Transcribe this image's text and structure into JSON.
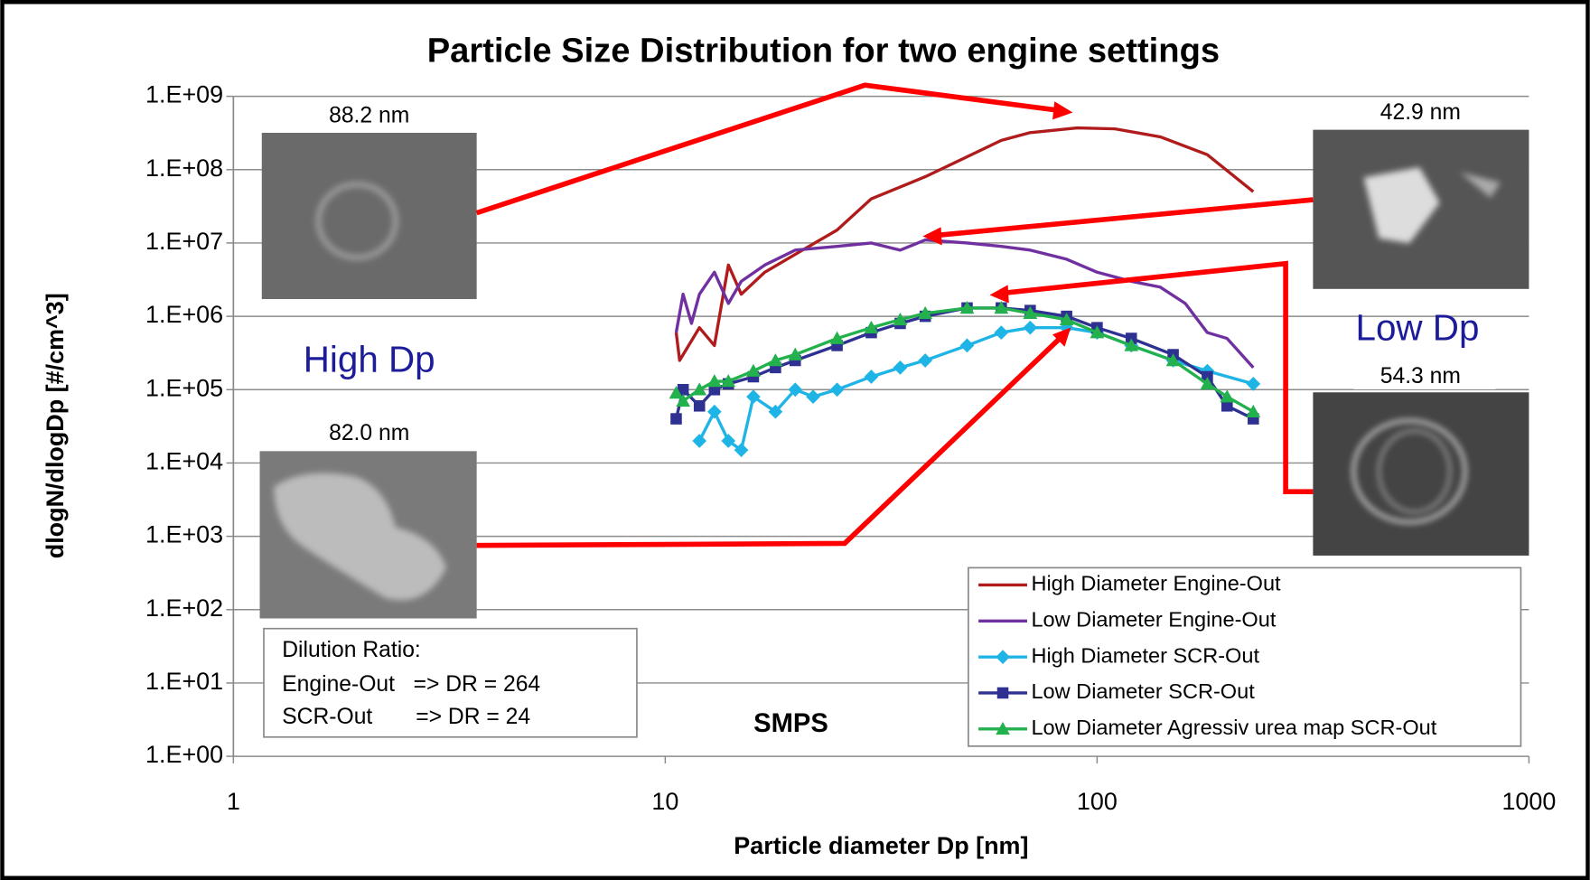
{
  "chart_data": {
    "type": "line",
    "title": "Particle Size Distribution for two engine settings",
    "x_label": "Particle diameter Dp [nm]",
    "y_label": "dlogN/dlogDp   [#/cm^3]",
    "x_log": true,
    "y_log": true,
    "grid": true,
    "legend": "lower right",
    "xlim": [
      1,
      1000
    ],
    "xticks": [
      1,
      10,
      100,
      1000
    ],
    "ylim": [
      1,
      1000000000
    ],
    "yticks": [
      {
        "value": 1,
        "label": "1.E+00"
      },
      {
        "value": 10,
        "label": "1.E+01"
      },
      {
        "value": 100,
        "label": "1.E+02"
      },
      {
        "value": 1000,
        "label": "1.E+03"
      },
      {
        "value": 10000,
        "label": "1.E+04"
      },
      {
        "value": 100000,
        "label": "1.E+05"
      },
      {
        "value": 1000000,
        "label": "1.E+06"
      },
      {
        "value": 10000000,
        "label": "1.E+07"
      },
      {
        "value": 100000000,
        "label": "1.E+08"
      },
      {
        "value": 1000000000,
        "label": "1.E+09"
      }
    ],
    "series": [
      {
        "name": "High Diameter Engine-Out",
        "color": "#b01c1c",
        "marker": "none",
        "x": [
          10.6,
          10.8,
          12,
          13,
          14,
          15,
          17,
          20,
          25,
          30,
          40,
          50,
          60,
          70,
          90,
          110,
          140,
          180,
          230
        ],
        "values": [
          600000,
          250000,
          700000,
          400000,
          5000000,
          2000000,
          4000000,
          7000000,
          15000000,
          40000000,
          80000000,
          150000000,
          250000000,
          320000000,
          370000000,
          360000000,
          280000000,
          160000000,
          50000000
        ]
      },
      {
        "name": "Low Diameter Engine-Out",
        "color": "#7030a0",
        "marker": "none",
        "x": [
          10.6,
          11,
          11.5,
          12,
          13,
          14,
          15,
          17,
          20,
          25,
          30,
          35,
          40,
          50,
          60,
          70,
          85,
          100,
          120,
          140,
          160,
          180,
          200,
          230
        ],
        "values": [
          600000,
          2000000,
          800000,
          2000000,
          4000000,
          1500000,
          3000000,
          5000000,
          8000000,
          9000000,
          10000000,
          8000000,
          11000000,
          10000000,
          9000000,
          8000000,
          6000000,
          4000000,
          3000000,
          2500000,
          1500000,
          600000,
          500000,
          200000
        ]
      },
      {
        "name": "High Diameter SCR-Out",
        "color": "#1fb4e6",
        "marker": "diamond",
        "x": [
          12,
          13,
          14,
          15,
          16,
          18,
          20,
          22,
          25,
          30,
          35,
          40,
          50,
          60,
          70,
          85,
          100,
          120,
          150,
          180,
          230
        ],
        "values": [
          20000,
          50000,
          20000,
          15000,
          80000,
          50000,
          100000,
          80000,
          100000,
          150000,
          200000,
          250000,
          400000,
          600000,
          700000,
          700000,
          600000,
          400000,
          250000,
          180000,
          120000
        ]
      },
      {
        "name": "Low Diameter SCR-Out",
        "color": "#2e3192",
        "marker": "square",
        "x": [
          10.6,
          11,
          12,
          13,
          14,
          16,
          18,
          20,
          25,
          30,
          35,
          40,
          50,
          60,
          70,
          85,
          100,
          120,
          150,
          180,
          200,
          230
        ],
        "values": [
          40000,
          100000,
          60000,
          100000,
          120000,
          150000,
          200000,
          250000,
          400000,
          600000,
          800000,
          1000000,
          1300000,
          1300000,
          1200000,
          1000000,
          700000,
          500000,
          300000,
          150000,
          60000,
          40000
        ]
      },
      {
        "name": "Low Diameter Agressiv urea map SCR-Out",
        "color": "#22b14c",
        "marker": "triangle",
        "x": [
          10.6,
          11,
          12,
          13,
          14,
          16,
          18,
          20,
          25,
          30,
          35,
          40,
          50,
          60,
          70,
          85,
          100,
          120,
          150,
          180,
          200,
          230
        ],
        "values": [
          90000,
          70000,
          100000,
          130000,
          130000,
          180000,
          250000,
          300000,
          500000,
          700000,
          900000,
          1100000,
          1300000,
          1300000,
          1100000,
          900000,
          600000,
          400000,
          250000,
          120000,
          80000,
          50000
        ]
      }
    ],
    "annotations": {
      "size_tl": "88.2 nm",
      "size_bl": "82.0 nm",
      "size_tr": "42.9 nm",
      "size_br": "54.3 nm",
      "high_dp": "High Dp",
      "low_dp": "Low Dp",
      "instrument": "SMPS",
      "dilution": [
        "Dilution Ratio:",
        "Engine-Out   => DR = 264",
        "SCR-Out       => DR = 24"
      ]
    }
  }
}
